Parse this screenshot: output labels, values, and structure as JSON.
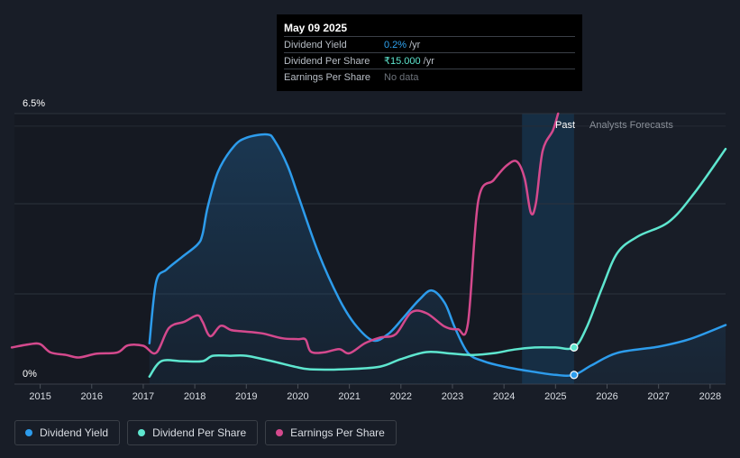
{
  "tooltip": {
    "date": "May 09 2025",
    "rows": [
      {
        "label": "Dividend Yield",
        "value": "0.2%",
        "unit": "/yr"
      },
      {
        "label": "Dividend Per Share",
        "value": "₹15.000",
        "unit": "/yr"
      },
      {
        "label": "Earnings Per Share",
        "value": "No data",
        "unit": ""
      }
    ]
  },
  "legend": [
    {
      "label": "Dividend Yield",
      "color": "#2d9cec"
    },
    {
      "label": "Dividend Per Share",
      "color": "#5ee6cf"
    },
    {
      "label": "Earnings Per Share",
      "color": "#d4498d"
    }
  ],
  "chart_data": {
    "type": "line",
    "y_top_label": "6.5%",
    "y_bottom_label": "0%",
    "ylim": [
      0,
      6.5
    ],
    "xlim": [
      2014.5,
      2028.3
    ],
    "x_ticks": [
      "2015",
      "2016",
      "2017",
      "2018",
      "2019",
      "2020",
      "2021",
      "2022",
      "2023",
      "2024",
      "2025",
      "2026",
      "2027",
      "2028"
    ],
    "region_past_label": "Past",
    "region_forecast_label": "Analysts Forecasts",
    "past_region": [
      2024.35,
      2025.36
    ],
    "series": [
      {
        "name": "Dividend Yield",
        "color": "#2d9cec",
        "filled": true,
        "points": [
          [
            2017.12,
            0.98
          ],
          [
            2017.25,
            2.45
          ],
          [
            2017.45,
            2.75
          ],
          [
            2017.75,
            3.05
          ],
          [
            2018.05,
            3.35
          ],
          [
            2018.15,
            3.6
          ],
          [
            2018.25,
            4.25
          ],
          [
            2018.45,
            5.1
          ],
          [
            2018.75,
            5.7
          ],
          [
            2019.0,
            5.92
          ],
          [
            2019.4,
            6.0
          ],
          [
            2019.55,
            5.85
          ],
          [
            2019.8,
            5.25
          ],
          [
            2020.0,
            4.55
          ],
          [
            2020.4,
            3.15
          ],
          [
            2020.8,
            2.05
          ],
          [
            2021.1,
            1.45
          ],
          [
            2021.45,
            1.05
          ],
          [
            2021.75,
            1.2
          ],
          [
            2022.05,
            1.6
          ],
          [
            2022.35,
            2.02
          ],
          [
            2022.6,
            2.25
          ],
          [
            2022.85,
            1.95
          ],
          [
            2023.05,
            1.35
          ],
          [
            2023.3,
            0.75
          ],
          [
            2023.6,
            0.55
          ],
          [
            2024.0,
            0.42
          ],
          [
            2024.5,
            0.31
          ],
          [
            2025.0,
            0.22
          ],
          [
            2025.36,
            0.22
          ],
          [
            2025.7,
            0.45
          ],
          [
            2026.2,
            0.75
          ],
          [
            2027.0,
            0.9
          ],
          [
            2027.6,
            1.08
          ],
          [
            2028.3,
            1.42
          ]
        ]
      },
      {
        "name": "Dividend Per Share",
        "color": "#5ee6cf",
        "filled": false,
        "points": [
          [
            2017.12,
            0.18
          ],
          [
            2017.35,
            0.55
          ],
          [
            2017.75,
            0.55
          ],
          [
            2018.15,
            0.55
          ],
          [
            2018.35,
            0.68
          ],
          [
            2018.7,
            0.68
          ],
          [
            2019.0,
            0.68
          ],
          [
            2019.5,
            0.55
          ],
          [
            2020.0,
            0.4
          ],
          [
            2020.3,
            0.35
          ],
          [
            2021.0,
            0.36
          ],
          [
            2021.6,
            0.42
          ],
          [
            2022.0,
            0.6
          ],
          [
            2022.5,
            0.77
          ],
          [
            2023.0,
            0.73
          ],
          [
            2023.4,
            0.7
          ],
          [
            2023.8,
            0.74
          ],
          [
            2024.2,
            0.83
          ],
          [
            2024.6,
            0.88
          ],
          [
            2025.0,
            0.88
          ],
          [
            2025.36,
            0.88
          ],
          [
            2025.6,
            1.35
          ],
          [
            2025.9,
            2.3
          ],
          [
            2026.2,
            3.15
          ],
          [
            2026.6,
            3.55
          ],
          [
            2027.2,
            3.9
          ],
          [
            2027.7,
            4.6
          ],
          [
            2028.3,
            5.65
          ]
        ]
      },
      {
        "name": "Earnings Per Share",
        "color": "#d4498d",
        "filled": false,
        "points": [
          [
            2014.45,
            0.88
          ],
          [
            2014.8,
            0.96
          ],
          [
            2015.0,
            0.96
          ],
          [
            2015.2,
            0.76
          ],
          [
            2015.5,
            0.7
          ],
          [
            2015.75,
            0.64
          ],
          [
            2016.1,
            0.73
          ],
          [
            2016.5,
            0.76
          ],
          [
            2016.7,
            0.93
          ],
          [
            2017.0,
            0.92
          ],
          [
            2017.25,
            0.75
          ],
          [
            2017.5,
            1.35
          ],
          [
            2017.8,
            1.5
          ],
          [
            2018.05,
            1.65
          ],
          [
            2018.15,
            1.5
          ],
          [
            2018.3,
            1.15
          ],
          [
            2018.5,
            1.4
          ],
          [
            2018.7,
            1.3
          ],
          [
            2018.9,
            1.27
          ],
          [
            2019.3,
            1.22
          ],
          [
            2019.7,
            1.1
          ],
          [
            2020.0,
            1.08
          ],
          [
            2020.15,
            1.07
          ],
          [
            2020.25,
            0.78
          ],
          [
            2020.5,
            0.76
          ],
          [
            2020.8,
            0.84
          ],
          [
            2021.0,
            0.74
          ],
          [
            2021.3,
            0.98
          ],
          [
            2021.6,
            1.12
          ],
          [
            2021.9,
            1.2
          ],
          [
            2022.2,
            1.72
          ],
          [
            2022.5,
            1.7
          ],
          [
            2022.85,
            1.38
          ],
          [
            2023.1,
            1.32
          ],
          [
            2023.3,
            1.45
          ],
          [
            2023.5,
            4.4
          ],
          [
            2023.8,
            4.9
          ],
          [
            2024.05,
            5.25
          ],
          [
            2024.25,
            5.35
          ],
          [
            2024.4,
            4.95
          ],
          [
            2024.52,
            4.12
          ],
          [
            2024.62,
            4.35
          ],
          [
            2024.75,
            5.6
          ],
          [
            2024.95,
            6.1
          ],
          [
            2025.05,
            6.5
          ]
        ]
      }
    ],
    "markers": [
      {
        "series": "Dividend Yield",
        "x": 2025.36,
        "y": 0.22
      },
      {
        "series": "Dividend Per Share",
        "x": 2025.36,
        "y": 0.88
      }
    ]
  }
}
